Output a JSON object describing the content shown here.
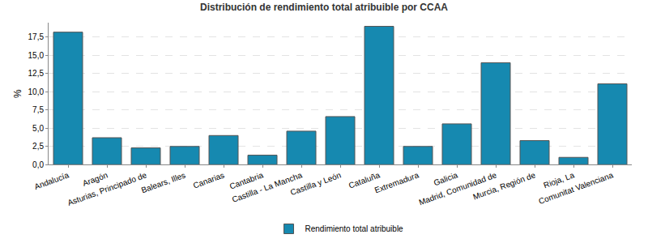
{
  "chart_data": {
    "type": "bar",
    "title": "Distribución de rendimiento total atribuible por CCAA",
    "y_label": "%",
    "categories": [
      "Andalucía",
      "Aragón",
      "Asturias, Principado de",
      "Balears, Illes",
      "Canarias",
      "Cantabria",
      "Castilla - La Mancha",
      "Castilla y León",
      "Cataluña",
      "Extremadura",
      "Galicia",
      "Madrid, Comunidad de",
      "Murcia, Región de",
      "Rioja, La",
      "Comunitat Valenciana"
    ],
    "series": [
      {
        "name": "Rendimiento total atribuible",
        "color": "#1689b0",
        "values": [
          18.2,
          3.7,
          2.3,
          2.5,
          4.0,
          1.3,
          4.6,
          6.6,
          19.0,
          2.5,
          5.6,
          14.0,
          3.3,
          1.0,
          11.1
        ]
      }
    ],
    "ylim": [
      0,
      19.5
    ],
    "yticks": [
      {
        "value": 0,
        "label": "0,0"
      },
      {
        "value": 2.5,
        "label": "2,5"
      },
      {
        "value": 5,
        "label": "5,0"
      },
      {
        "value": 7.5,
        "label": "7,5"
      },
      {
        "value": 10,
        "label": "10,0"
      },
      {
        "value": 12.5,
        "label": "12,5"
      },
      {
        "value": 15,
        "label": "15,0"
      },
      {
        "value": 17.5,
        "label": "17,5"
      }
    ],
    "grid": true,
    "legend": "bottom"
  }
}
